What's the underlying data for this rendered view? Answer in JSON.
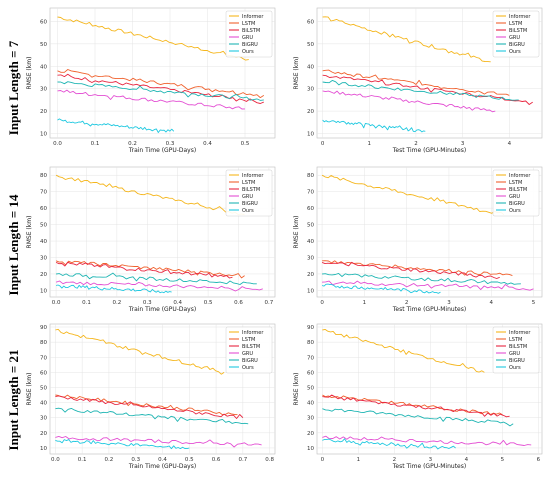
{
  "row_labels": [
    "Input Length = 7",
    "Input Length = 14",
    "Input Length = 21"
  ],
  "colors": {
    "Informer": "#f5b61d",
    "LSTM": "#f0622e",
    "BiLSTM": "#e8253f",
    "GRU": "#e34fd3",
    "BiGRU": "#1fb5b3",
    "Ours": "#1ec8e0"
  },
  "chart_data": [
    {
      "type": "line",
      "row": 0,
      "col": 0,
      "xlabel": "Train Time (GPU-Days)",
      "ylabel": "RMSE (km)",
      "xlim": [
        -0.02,
        0.58
      ],
      "ylim": [
        8,
        66
      ],
      "xticks": [
        0.0,
        0.1,
        0.2,
        0.3,
        0.4,
        0.5
      ],
      "xtick_labels": [
        "0.0",
        "0.1",
        "0.2",
        "0.3",
        "0.4",
        "0.5"
      ],
      "yticks": [
        10,
        20,
        30,
        40,
        50,
        60
      ],
      "grid": true,
      "legend": "top-right",
      "series": [
        {
          "name": "Informer",
          "x_end": 0.51,
          "start": 62,
          "end": 43
        },
        {
          "name": "LSTM",
          "x_end": 0.55,
          "start": 38,
          "end": 27
        },
        {
          "name": "BiLSTM",
          "x_end": 0.55,
          "start": 36,
          "end": 24
        },
        {
          "name": "GRU",
          "x_end": 0.5,
          "start": 29,
          "end": 21
        },
        {
          "name": "BiGRU",
          "x_end": 0.55,
          "start": 33,
          "end": 25
        },
        {
          "name": "Ours",
          "x_end": 0.31,
          "start": 16,
          "end": 11
        }
      ]
    },
    {
      "type": "line",
      "row": 0,
      "col": 1,
      "xlabel": "Test Time (GPU-Minutes)",
      "ylabel": "RMSE (km)",
      "xlim": [
        -0.12,
        4.7
      ],
      "ylim": [
        8,
        66
      ],
      "xticks": [
        0,
        1,
        2,
        3,
        4
      ],
      "xtick_labels": [
        "0",
        "1",
        "2",
        "3",
        "4"
      ],
      "yticks": [
        10,
        20,
        30,
        40,
        50,
        60
      ],
      "grid": true,
      "legend": "top-right",
      "series": [
        {
          "name": "Informer",
          "x_end": 3.6,
          "start": 62,
          "end": 42
        },
        {
          "name": "LSTM",
          "x_end": 4.0,
          "start": 38,
          "end": 27
        },
        {
          "name": "BiLSTM",
          "x_end": 4.5,
          "start": 36,
          "end": 24
        },
        {
          "name": "GRU",
          "x_end": 3.7,
          "start": 29,
          "end": 20
        },
        {
          "name": "BiGRU",
          "x_end": 4.2,
          "start": 33,
          "end": 25
        },
        {
          "name": "Ours",
          "x_end": 2.2,
          "start": 16,
          "end": 11
        }
      ]
    },
    {
      "type": "line",
      "row": 1,
      "col": 0,
      "xlabel": "Train Time (GPU-Days)",
      "ylabel": "RMSE (km)",
      "xlim": [
        -0.02,
        0.72
      ],
      "ylim": [
        6,
        85
      ],
      "xticks": [
        0.0,
        0.1,
        0.2,
        0.3,
        0.4,
        0.5,
        0.6,
        0.7
      ],
      "xtick_labels": [
        "0.0",
        "0.1",
        "0.2",
        "0.3",
        "0.4",
        "0.5",
        "0.6",
        "0.7"
      ],
      "yticks": [
        10,
        20,
        30,
        40,
        50,
        60,
        70,
        80
      ],
      "grid": true,
      "legend": "top-right",
      "series": [
        {
          "name": "Informer",
          "x_end": 0.62,
          "start": 80,
          "end": 56
        },
        {
          "name": "LSTM",
          "x_end": 0.62,
          "start": 28,
          "end": 19
        },
        {
          "name": "BiLSTM",
          "x_end": 0.58,
          "start": 27,
          "end": 18
        },
        {
          "name": "GRU",
          "x_end": 0.68,
          "start": 15,
          "end": 11
        },
        {
          "name": "BiGRU",
          "x_end": 0.66,
          "start": 20,
          "end": 14
        },
        {
          "name": "Ours",
          "x_end": 0.38,
          "start": 13,
          "end": 9
        }
      ]
    },
    {
      "type": "line",
      "row": 1,
      "col": 1,
      "xlabel": "Test Time (GPU-Minutes)",
      "ylabel": "RMSE (km)",
      "xlim": [
        -0.12,
        5.2
      ],
      "ylim": [
        6,
        85
      ],
      "xticks": [
        0,
        1,
        2,
        3,
        4,
        5
      ],
      "xtick_labels": [
        "0",
        "1",
        "2",
        "3",
        "4",
        "5"
      ],
      "yticks": [
        10,
        20,
        30,
        40,
        50,
        60,
        70,
        80
      ],
      "grid": true,
      "legend": "top-right",
      "series": [
        {
          "name": "Informer",
          "x_end": 4.3,
          "start": 80,
          "end": 56
        },
        {
          "name": "LSTM",
          "x_end": 4.5,
          "start": 28,
          "end": 19
        },
        {
          "name": "BiLSTM",
          "x_end": 4.2,
          "start": 27,
          "end": 18
        },
        {
          "name": "GRU",
          "x_end": 5.0,
          "start": 15,
          "end": 11
        },
        {
          "name": "BiGRU",
          "x_end": 4.7,
          "start": 20,
          "end": 14
        },
        {
          "name": "Ours",
          "x_end": 2.8,
          "start": 13,
          "end": 9
        }
      ]
    },
    {
      "type": "line",
      "row": 2,
      "col": 0,
      "xlabel": "Train Time (GPU-Days)",
      "ylabel": "RMSE (km)",
      "xlim": [
        -0.02,
        0.82
      ],
      "ylim": [
        6,
        92
      ],
      "xticks": [
        0.0,
        0.1,
        0.2,
        0.3,
        0.4,
        0.5,
        0.6,
        0.7,
        0.8
      ],
      "xtick_labels": [
        "0.0",
        "0.1",
        "0.2",
        "0.3",
        "0.4",
        "0.5",
        "0.6",
        "0.7",
        "0.8"
      ],
      "yticks": [
        10,
        20,
        30,
        40,
        50,
        60,
        70,
        80,
        90
      ],
      "grid": true,
      "legend": "top-right",
      "series": [
        {
          "name": "Informer",
          "x_end": 0.63,
          "start": 88,
          "end": 60
        },
        {
          "name": "LSTM",
          "x_end": 0.68,
          "start": 45,
          "end": 32
        },
        {
          "name": "BiLSTM",
          "x_end": 0.7,
          "start": 44,
          "end": 30
        },
        {
          "name": "GRU",
          "x_end": 0.77,
          "start": 17,
          "end": 12
        },
        {
          "name": "BiGRU",
          "x_end": 0.72,
          "start": 36,
          "end": 26
        },
        {
          "name": "Ours",
          "x_end": 0.5,
          "start": 15,
          "end": 10
        }
      ]
    },
    {
      "type": "line",
      "row": 2,
      "col": 1,
      "xlabel": "Test Time (GPU-Minutes)",
      "ylabel": "RMSE (km)",
      "xlim": [
        -0.15,
        6.1
      ],
      "ylim": [
        6,
        92
      ],
      "xticks": [
        0,
        1,
        2,
        3,
        4,
        5,
        6
      ],
      "xtick_labels": [
        "0",
        "1",
        "2",
        "3",
        "4",
        "5",
        "6"
      ],
      "yticks": [
        10,
        20,
        30,
        40,
        50,
        60,
        70,
        80,
        90
      ],
      "grid": true,
      "legend": "top-right",
      "series": [
        {
          "name": "Informer",
          "x_end": 4.5,
          "start": 88,
          "end": 60
        },
        {
          "name": "LSTM",
          "x_end": 5.0,
          "start": 45,
          "end": 32
        },
        {
          "name": "BiLSTM",
          "x_end": 5.2,
          "start": 44,
          "end": 31
        },
        {
          "name": "GRU",
          "x_end": 5.8,
          "start": 17,
          "end": 12
        },
        {
          "name": "BiGRU",
          "x_end": 5.3,
          "start": 36,
          "end": 26
        },
        {
          "name": "Ours",
          "x_end": 3.7,
          "start": 15,
          "end": 10
        }
      ]
    }
  ]
}
